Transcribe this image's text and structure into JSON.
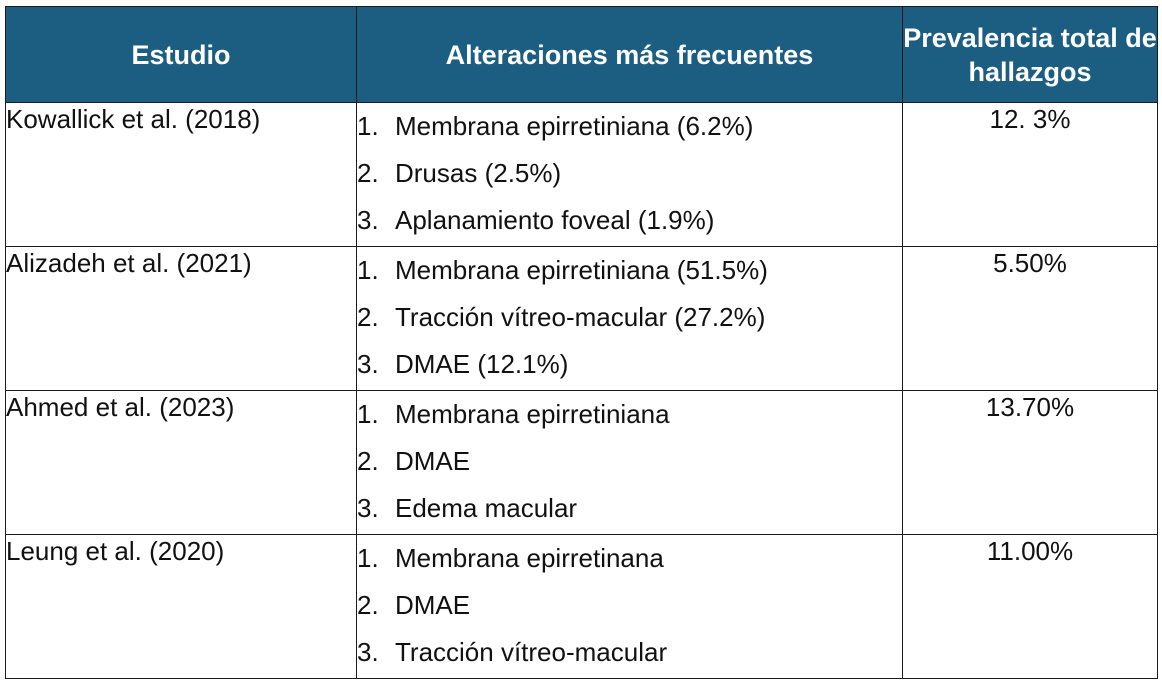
{
  "table": {
    "headers": {
      "study": "Estudio",
      "alterations": "Alteraciones más frecuentes",
      "prevalence": "Prevalencia total de hallazgos"
    },
    "rows": [
      {
        "study": "Kowallick et al. (2018)",
        "items": [
          {
            "num": "1.",
            "text": "Membrana epirretiniana (6.2%)"
          },
          {
            "num": "2.",
            "text": "Drusas (2.5%)"
          },
          {
            "num": "3.",
            "text": "Aplanamiento foveal (1.9%)"
          }
        ],
        "prevalence": "12. 3%"
      },
      {
        "study": "Alizadeh et al. (2021)",
        "items": [
          {
            "num": "1.",
            "text": "Membrana epirretiniana (51.5%)"
          },
          {
            "num": "2.",
            "text": "Tracción vítreo-macular (27.2%)"
          },
          {
            "num": "3.",
            "text": "DMAE (12.1%)"
          }
        ],
        "prevalence": "5.50%"
      },
      {
        "study": "Ahmed et al. (2023)",
        "items": [
          {
            "num": "1.",
            "text": "Membrana epirretiniana"
          },
          {
            "num": "2.",
            "text": "DMAE"
          },
          {
            "num": "3.",
            "text": "Edema macular"
          }
        ],
        "prevalence": "13.70%"
      },
      {
        "study": "Leung et al. (2020)",
        "items": [
          {
            "num": "1.",
            "text": "Membrana epirretinana"
          },
          {
            "num": "2.",
            "text": "DMAE"
          },
          {
            "num": "3.",
            "text": "Tracción vítreo-macular"
          }
        ],
        "prevalence": "11.00%"
      }
    ]
  },
  "colors": {
    "header_bg": "#1b5e82",
    "header_text": "#ffffff",
    "border": "#1c1c1c"
  }
}
